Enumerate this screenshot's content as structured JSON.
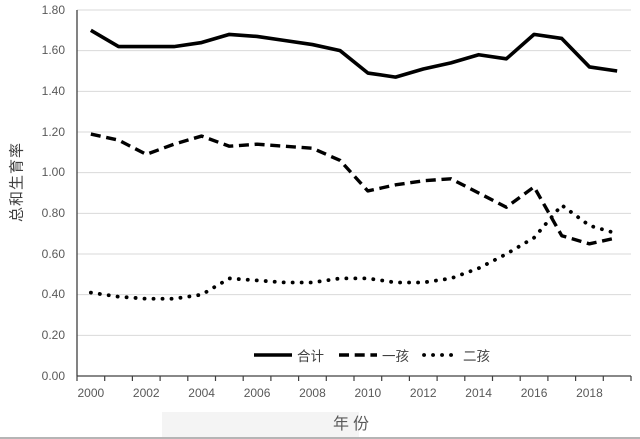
{
  "chart_data": {
    "type": "line",
    "title": "",
    "xlabel": "年份",
    "ylabel": "总和生育率",
    "x": [
      2000,
      2001,
      2002,
      2003,
      2004,
      2005,
      2006,
      2007,
      2008,
      2009,
      2010,
      2011,
      2012,
      2013,
      2014,
      2015,
      2016,
      2017,
      2018,
      2019
    ],
    "x_tick_labels": [
      "2000",
      "2002",
      "2004",
      "2006",
      "2008",
      "2010",
      "2012",
      "2014",
      "2016",
      "2018"
    ],
    "y_tick_labels": [
      "0.00",
      "0.20",
      "0.40",
      "0.60",
      "0.80",
      "1.00",
      "1.20",
      "1.40",
      "1.60",
      "1.80"
    ],
    "ylim": [
      0,
      1.8
    ],
    "y_step": 0.2,
    "grid": "horizontal",
    "legend_position": "bottom-center",
    "series": [
      {
        "key": "total",
        "name": "合计",
        "style": "solid",
        "values": [
          1.7,
          1.62,
          1.62,
          1.62,
          1.64,
          1.68,
          1.67,
          1.65,
          1.63,
          1.6,
          1.49,
          1.47,
          1.51,
          1.54,
          1.58,
          1.56,
          1.68,
          1.66,
          1.52,
          1.5
        ]
      },
      {
        "key": "first-child",
        "name": "一孩",
        "style": "dashed",
        "values": [
          1.19,
          1.16,
          1.09,
          1.14,
          1.18,
          1.13,
          1.14,
          1.13,
          1.12,
          1.06,
          0.91,
          0.94,
          0.96,
          0.97,
          0.9,
          0.83,
          0.93,
          0.69,
          0.65,
          0.68
        ]
      },
      {
        "key": "second-child",
        "name": "二孩",
        "style": "dotted",
        "values": [
          0.41,
          0.39,
          0.38,
          0.38,
          0.4,
          0.48,
          0.47,
          0.46,
          0.46,
          0.48,
          0.48,
          0.46,
          0.46,
          0.48,
          0.53,
          0.6,
          0.68,
          0.84,
          0.74,
          0.7
        ]
      }
    ],
    "colors": {
      "line": "#000000",
      "grid": "#d9d9d9",
      "axis": "#404040",
      "text": "#595959",
      "bottom_edge": "#b5b5b5"
    }
  }
}
